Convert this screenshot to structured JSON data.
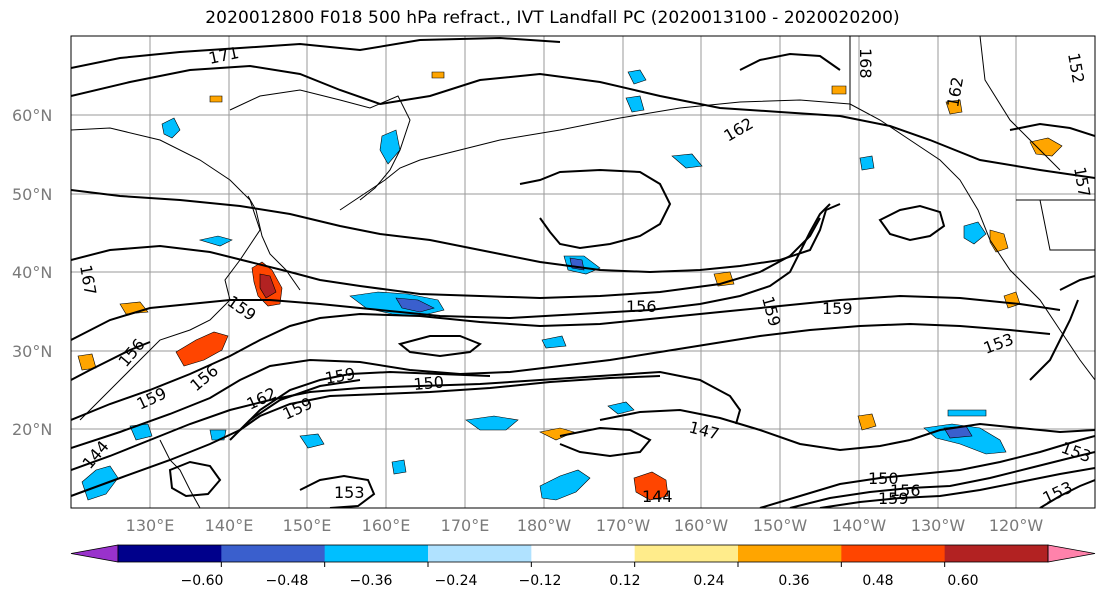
{
  "title": "2020012800 F018 500 hPa refract., IVT Landfall PC (2020013100 - 2020020200)",
  "map": {
    "lat_labels": [
      "60°N",
      "50°N",
      "40°N",
      "30°N",
      "20°N"
    ],
    "lon_labels": [
      "130°E",
      "140°E",
      "150°E",
      "160°E",
      "170°E",
      "180°W",
      "170°W",
      "160°W",
      "150°W",
      "140°W",
      "130°W",
      "120°W"
    ],
    "contour_labels": [
      "171",
      "168",
      "162",
      "162",
      "157",
      "156",
      "159",
      "159",
      "159",
      "156",
      "159",
      "156",
      "159",
      "162",
      "159",
      "150",
      "153",
      "147",
      "150",
      "156",
      "159",
      "153",
      "144",
      "144",
      "153",
      "153",
      "167",
      "152"
    ],
    "colors": {
      "contour": "#000000",
      "grid": "#9a9a9a",
      "coast": "#000000"
    }
  },
  "colorbar": {
    "ticks": [
      "−0.60",
      "−0.48",
      "−0.36",
      "−0.24",
      "−0.12",
      "0.12",
      "0.24",
      "0.36",
      "0.48",
      "0.60"
    ],
    "colors": [
      "#9932cc",
      "#00008b",
      "#3a5fcd",
      "#00bfff",
      "#b0e2ff",
      "#ffffff",
      "#ffec8b",
      "#ffa500",
      "#ff4500",
      "#b22222",
      "#ff82ab"
    ]
  }
}
